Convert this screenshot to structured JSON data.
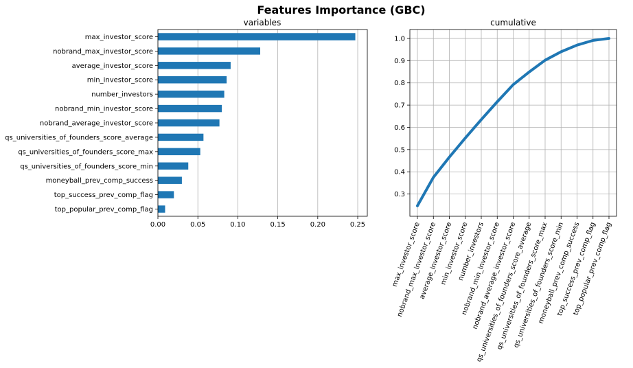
{
  "figure": {
    "suptitle": "Features Importance (GBC)"
  },
  "chart_data": [
    {
      "type": "bar",
      "orientation": "horizontal",
      "title": "variables",
      "categories": [
        "max_investor_score",
        "nobrand_max_investor_score",
        "average_investor_score",
        "min_investor_score",
        "number_investors",
        "nobrand_min_investor_score",
        "nobrand_average_investor_score",
        "qs_universities_of_founders_score_average",
        "qs_universities_of_founders_score_max",
        "qs_universities_of_founders_score_min",
        "moneyball_prev_comp_success",
        "top_success_prev_comp_flag",
        "top_popular_prev_comp_flag"
      ],
      "values": [
        0.247,
        0.128,
        0.091,
        0.086,
        0.083,
        0.08,
        0.077,
        0.057,
        0.053,
        0.038,
        0.03,
        0.02,
        0.009
      ],
      "xlim": [
        0,
        0.262
      ],
      "xticks": [
        "0.00",
        "0.05",
        "0.10",
        "0.15",
        "0.20",
        "0.25"
      ],
      "grid": "x",
      "color": "#1f77b4"
    },
    {
      "type": "line",
      "title": "cumulative",
      "categories": [
        "max_investor_score",
        "nobrand_max_investor_score",
        "average_investor_score",
        "min_investor_score",
        "number_investors",
        "nobrand_min_investor_score",
        "nobrand_average_investor_score",
        "qs_universities_of_founders_score_average",
        "qs_universities_of_founders_score_max",
        "qs_universities_of_founders_score_min",
        "moneyball_prev_comp_success",
        "top_success_prev_comp_flag",
        "top_popular_prev_comp_flag"
      ],
      "values": [
        0.247,
        0.375,
        0.466,
        0.552,
        0.635,
        0.715,
        0.792,
        0.849,
        0.902,
        0.94,
        0.97,
        0.991,
        1.0
      ],
      "ylim": [
        0.2,
        1.04
      ],
      "yticks": [
        "0.3",
        "0.4",
        "0.5",
        "0.6",
        "0.7",
        "0.8",
        "0.9",
        "1.0"
      ],
      "grid": "both",
      "color": "#1f77b4"
    }
  ]
}
